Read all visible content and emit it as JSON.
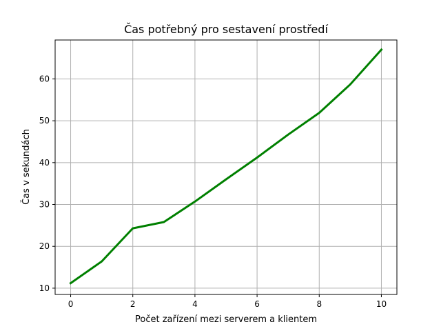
{
  "chart_data": {
    "type": "line",
    "title": "Čas potřebný pro sestavení prostředí",
    "xlabel": "Počet zařízení mezi serverem a klientem",
    "ylabel": "Čas v sekundách",
    "x": [
      0,
      1,
      2,
      3,
      4,
      5,
      6,
      7,
      8,
      9,
      10
    ],
    "series": [
      {
        "values": [
          11.2,
          16.4,
          24.3,
          25.8,
          30.7,
          36.0,
          41.2,
          46.7,
          51.9,
          58.7,
          67.0
        ],
        "color": "#008000"
      }
    ],
    "xlim": [
      -0.5,
      10.5
    ],
    "ylim": [
      8.5,
      69.3
    ],
    "xticks": [
      0,
      2,
      4,
      6,
      8,
      10
    ],
    "yticks": [
      10,
      20,
      30,
      40,
      50,
      60
    ],
    "grid": true,
    "legend": "none"
  }
}
